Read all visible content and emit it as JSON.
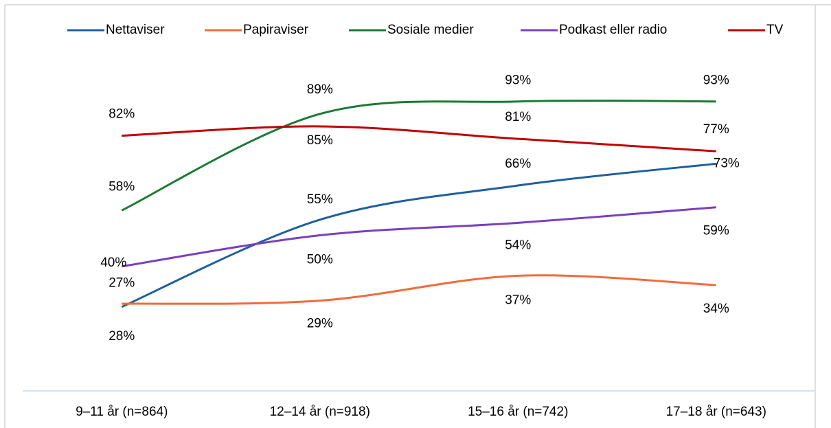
{
  "chart_data": {
    "type": "line",
    "categories": [
      "9–11 år (n=864)",
      "12–14 år (n=918)",
      "15–16 år (n=742)",
      "17–18 år (n=643)"
    ],
    "series": [
      {
        "name": "Nettaviser",
        "color": "#1f5fa0",
        "values": [
          27,
          55,
          66,
          73
        ],
        "value_labels": [
          "27%",
          "55%",
          "66%",
          "73%"
        ]
      },
      {
        "name": "Papiraviser",
        "color": "#f26b3a",
        "values": [
          28,
          29,
          37,
          34
        ],
        "value_labels": [
          "28%",
          "29%",
          "37%",
          "34%"
        ]
      },
      {
        "name": "Sosiale medier",
        "color": "#1a7a32",
        "values": [
          58,
          89,
          93,
          93
        ],
        "value_labels": [
          "58%",
          "89%",
          "93%",
          "93%"
        ]
      },
      {
        "name": "Podkast eller radio",
        "color": "#7a3fbf",
        "values": [
          40,
          50,
          54,
          59
        ],
        "value_labels": [
          "40%",
          "50%",
          "54%",
          "59%"
        ]
      },
      {
        "name": "TV",
        "color": "#c00000",
        "values": [
          82,
          85,
          81,
          77
        ],
        "value_labels": [
          "82%",
          "85%",
          "81%",
          "77%"
        ]
      }
    ],
    "ylim": [
      0,
      100
    ],
    "legend": "top"
  }
}
